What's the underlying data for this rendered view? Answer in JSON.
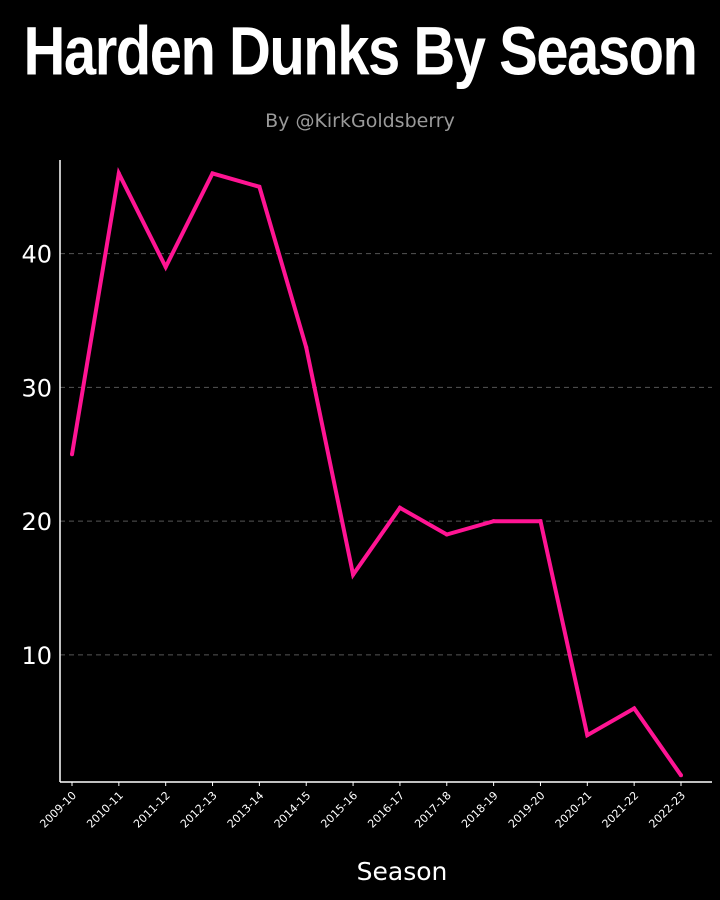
{
  "title": "Harden Dunks By Season",
  "subtitle": "By @KirkGoldsberry",
  "colors": {
    "background": "#000000",
    "line": "#ff1493",
    "text": "#ffffff",
    "subtitle": "#9a9a9a",
    "grid": "#555555"
  },
  "chart_data": {
    "type": "line",
    "title": "Harden Dunks By Season",
    "xlabel": "Season",
    "ylabel": "",
    "categories": [
      "2009-10",
      "2010-11",
      "2011-12",
      "2012-13",
      "2013-14",
      "2014-15",
      "2015-16",
      "2016-17",
      "2017-18",
      "2018-19",
      "2019-20",
      "2020-21",
      "2021-22",
      "2022-23"
    ],
    "series": [
      {
        "values": [
          25,
          46,
          39,
          46,
          45,
          33,
          16,
          21,
          19,
          20,
          20,
          4,
          6,
          1
        ]
      }
    ],
    "yticks": [
      10,
      20,
      30,
      40
    ],
    "ylim": [
      0.5,
      47
    ],
    "grid": "horizontal-dashed",
    "legend": "none"
  }
}
